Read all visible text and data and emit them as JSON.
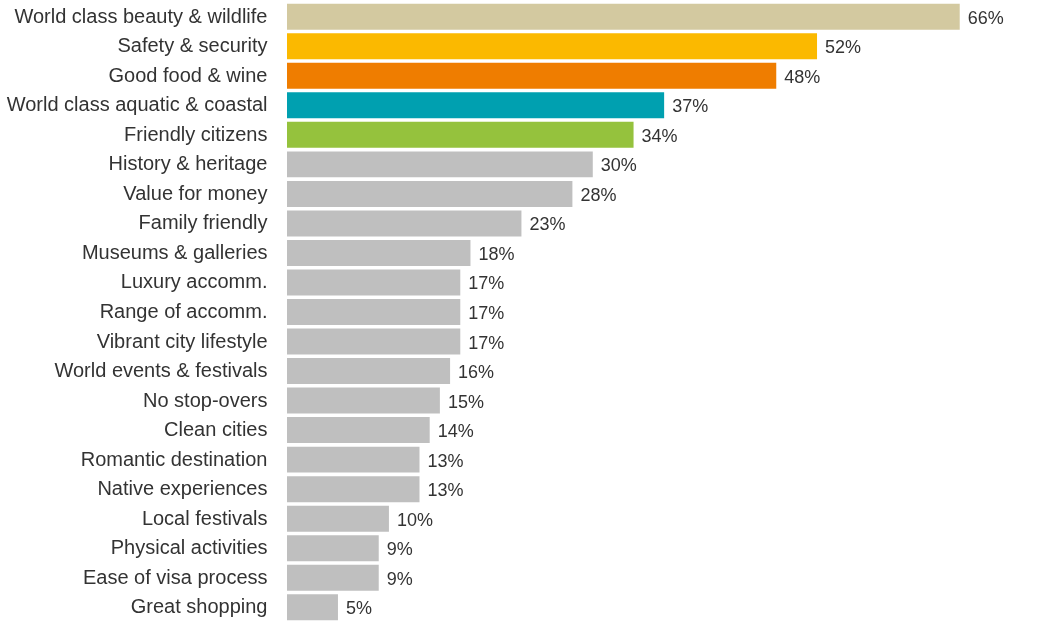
{
  "chart_data": {
    "type": "bar",
    "orientation": "horizontal",
    "categories": [
      "World class beauty & wildlife",
      "Safety & security",
      "Good food & wine",
      "World class aquatic & coastal",
      "Friendly citizens",
      "History & heritage",
      "Value for money",
      "Family friendly",
      "Museums & galleries",
      "Luxury accomm.",
      "Range of accomm.",
      "Vibrant city lifestyle",
      "World events & festivals",
      "No stop-overs",
      "Clean cities",
      "Romantic destination",
      "Native experiences",
      "Local festivals",
      "Physical activities",
      "Ease of visa process",
      "Great shopping"
    ],
    "values": [
      66,
      52,
      48,
      37,
      34,
      30,
      28,
      23,
      18,
      17,
      17,
      17,
      16,
      15,
      14,
      13,
      13,
      10,
      9,
      9,
      5
    ],
    "value_labels": [
      "66%",
      "52%",
      "48%",
      "37%",
      "34%",
      "30%",
      "28%",
      "23%",
      "18%",
      "17%",
      "17%",
      "17%",
      "16%",
      "15%",
      "14%",
      "13%",
      "13%",
      "10%",
      "9%",
      "9%",
      "5%"
    ],
    "colors": [
      "#d3c9a0",
      "#fbb900",
      "#ef7d00",
      "#00a0b0",
      "#95c23d",
      "#bfbfbf",
      "#bfbfbf",
      "#bfbfbf",
      "#bfbfbf",
      "#bfbfbf",
      "#bfbfbf",
      "#bfbfbf",
      "#bfbfbf",
      "#bfbfbf",
      "#bfbfbf",
      "#bfbfbf",
      "#bfbfbf",
      "#bfbfbf",
      "#bfbfbf",
      "#bfbfbf",
      "#bfbfbf"
    ],
    "grid": false
  }
}
